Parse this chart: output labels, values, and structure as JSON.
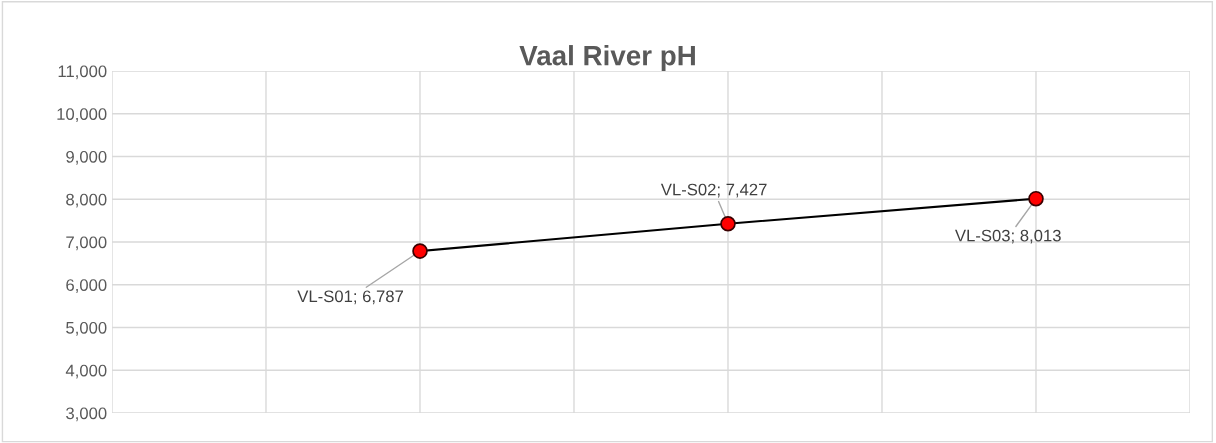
{
  "chart_data": {
    "type": "line",
    "title": "Vaal River pH",
    "categories": [
      null,
      null,
      null
    ],
    "series": [
      {
        "color": "#000000",
        "values": [
          6787,
          7427,
          8013
        ]
      },
      {
        "type": "scatter",
        "color": "#ff0000",
        "marker": "circle",
        "values": [
          6787,
          7427,
          8013
        ],
        "value_labels": [
          "VL-S01; 6,787",
          "VL-S02; 7,427",
          "VL-S03; 8,013"
        ]
      }
    ],
    "ylim": [
      3000,
      11000
    ],
    "yticks": [
      {
        "value": 3000,
        "label": "3,000"
      },
      {
        "value": 4000,
        "label": "4,000"
      },
      {
        "value": 5000,
        "label": "5,000"
      },
      {
        "value": 6000,
        "label": "6,000"
      },
      {
        "value": 7000,
        "label": "7,000"
      },
      {
        "value": 8000,
        "label": "8,000"
      },
      {
        "value": 9000,
        "label": "9,000"
      },
      {
        "value": 10000,
        "label": "10,000"
      },
      {
        "value": 11000,
        "label": "11,000"
      }
    ],
    "grid": true,
    "line_style": "solid",
    "tick_labels": "y"
  }
}
